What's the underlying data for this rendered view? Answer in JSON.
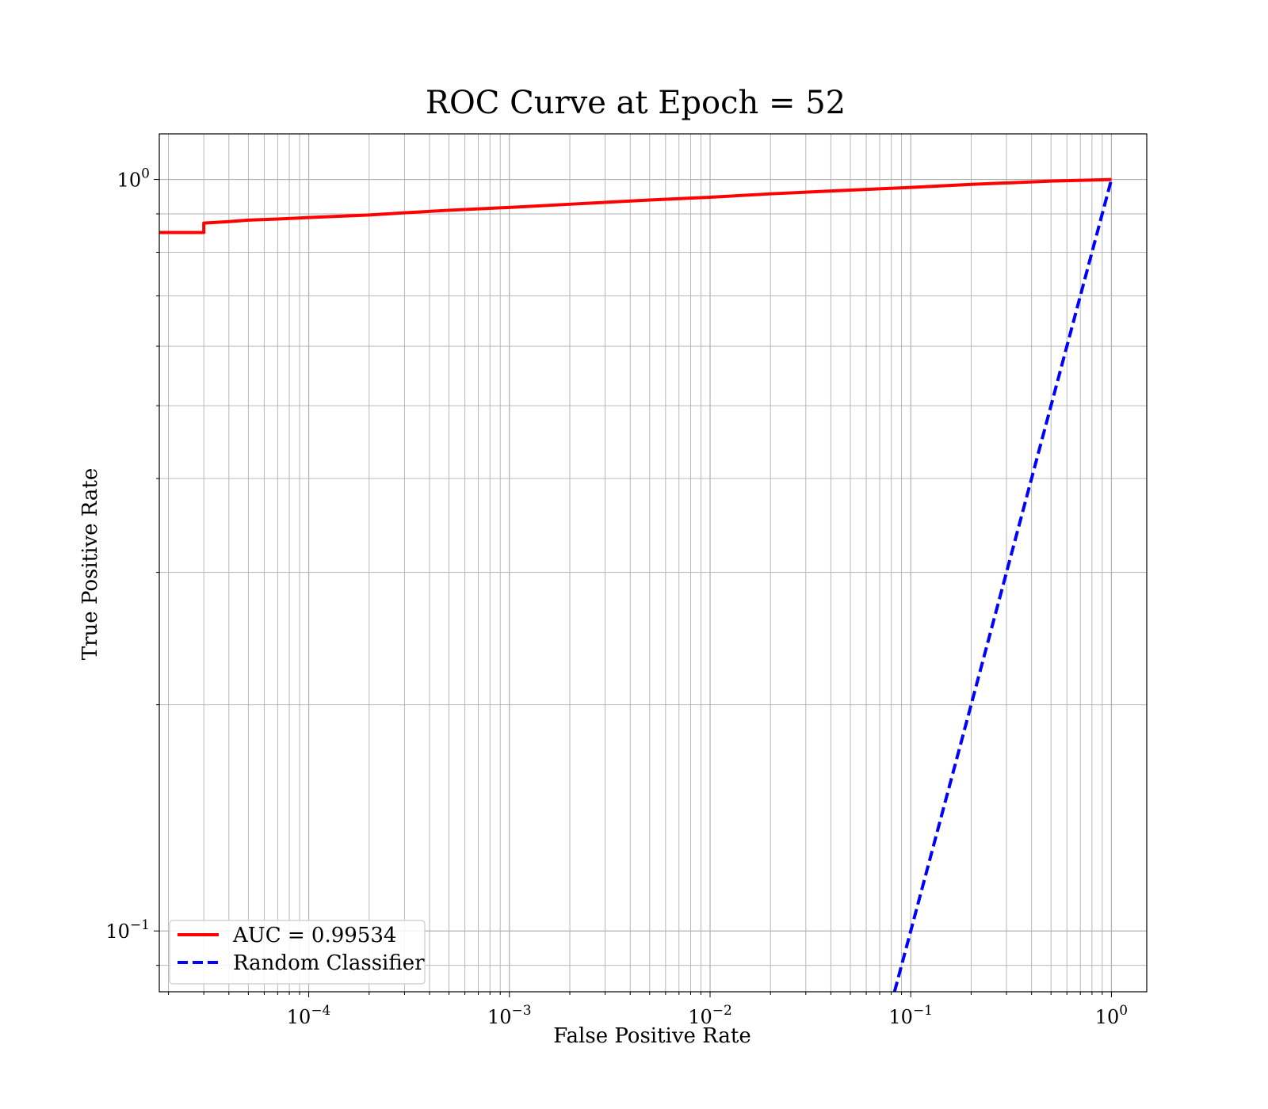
{
  "chart_data": {
    "type": "line",
    "title": "ROC Curve at Epoch = 52",
    "xlabel": "False Positive Rate",
    "ylabel": "True Positive Rate",
    "xscale": "log",
    "yscale": "log",
    "xlim": [
      1.8e-05,
      1.5
    ],
    "ylim": [
      0.083,
      1.15
    ],
    "grid": true,
    "grid_minor": true,
    "legend_position": "lower-left",
    "x_ticks": [
      {
        "value": 0.0001,
        "base": "10",
        "exp": "−4"
      },
      {
        "value": 0.001,
        "base": "10",
        "exp": "−3"
      },
      {
        "value": 0.01,
        "base": "10",
        "exp": "−2"
      },
      {
        "value": 0.1,
        "base": "10",
        "exp": "−1"
      },
      {
        "value": 1,
        "base": "10",
        "exp": "0"
      }
    ],
    "y_ticks": [
      {
        "value": 0.1,
        "base": "10",
        "exp": "−1"
      },
      {
        "value": 1,
        "base": "10",
        "exp": "0"
      }
    ],
    "series": [
      {
        "name": "AUC = 0.99534",
        "color": "#ff0000",
        "style": "solid",
        "x": [
          1.8e-05,
          3e-05,
          3e-05,
          4e-05,
          5e-05,
          7e-05,
          0.0001,
          0.0002,
          0.0003,
          0.0005,
          0.001,
          0.002,
          0.005,
          0.01,
          0.02,
          0.05,
          0.1,
          0.2,
          0.5,
          1.0
        ],
        "y": [
          0.85,
          0.85,
          0.875,
          0.879,
          0.883,
          0.886,
          0.89,
          0.897,
          0.903,
          0.91,
          0.918,
          0.927,
          0.939,
          0.947,
          0.957,
          0.968,
          0.976,
          0.985,
          0.995,
          1.0
        ]
      },
      {
        "name": "Random Classifier",
        "color": "#0000ff",
        "style": "dashed",
        "x": [
          0.083,
          1.0
        ],
        "y": [
          0.083,
          1.0
        ]
      }
    ]
  }
}
